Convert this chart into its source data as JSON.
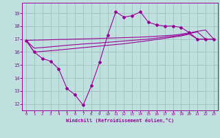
{
  "bg_color": "#c0e0e0",
  "grid_color": "#9ab8b8",
  "line_color": "#990099",
  "spine_color": "#990099",
  "xlabel": "Windchill (Refroidissement éolien,°C)",
  "xlim": [
    -0.5,
    23.5
  ],
  "ylim": [
    11.5,
    19.8
  ],
  "xticks": [
    0,
    1,
    2,
    3,
    4,
    5,
    6,
    7,
    8,
    9,
    10,
    11,
    12,
    13,
    14,
    15,
    16,
    17,
    18,
    19,
    20,
    21,
    22,
    23
  ],
  "yticks": [
    12,
    13,
    14,
    15,
    16,
    17,
    18,
    19
  ],
  "hours": [
    0,
    1,
    2,
    3,
    4,
    5,
    6,
    7,
    8,
    9,
    10,
    11,
    12,
    13,
    14,
    15,
    16,
    17,
    18,
    19,
    20,
    21,
    22,
    23
  ],
  "temp_main": [
    16.9,
    16.0,
    15.5,
    15.3,
    14.7,
    13.2,
    12.7,
    11.9,
    13.4,
    15.2,
    17.3,
    19.1,
    18.7,
    18.8,
    19.1,
    18.3,
    18.1,
    18.0,
    18.0,
    17.9,
    17.5,
    17.0,
    17.0,
    17.0
  ],
  "line1_start": 16.9,
  "line1_end": 17.0,
  "line2_start": 16.9,
  "line2_end": 17.0,
  "line3_start": 16.9,
  "line3_end": 17.0,
  "line1_y": [
    16.9,
    16.92,
    16.93,
    16.95,
    16.97,
    16.98,
    17.0,
    17.01,
    17.03,
    17.05,
    17.07,
    17.09,
    17.11,
    17.13,
    17.15,
    17.18,
    17.22,
    17.26,
    17.3,
    17.38,
    17.48,
    17.6,
    17.7,
    17.0
  ],
  "line2_y": [
    16.9,
    16.3,
    16.35,
    16.4,
    16.46,
    16.52,
    16.57,
    16.62,
    16.66,
    16.7,
    16.75,
    16.8,
    16.85,
    16.9,
    16.95,
    17.0,
    17.08,
    17.15,
    17.22,
    17.3,
    17.42,
    17.55,
    17.0,
    17.0
  ],
  "line3_y": [
    16.9,
    16.0,
    16.05,
    16.1,
    16.16,
    16.22,
    16.28,
    16.34,
    16.4,
    16.46,
    16.52,
    16.58,
    16.64,
    16.72,
    16.8,
    16.88,
    16.97,
    17.06,
    17.15,
    17.24,
    17.38,
    17.0,
    17.0,
    17.0
  ]
}
